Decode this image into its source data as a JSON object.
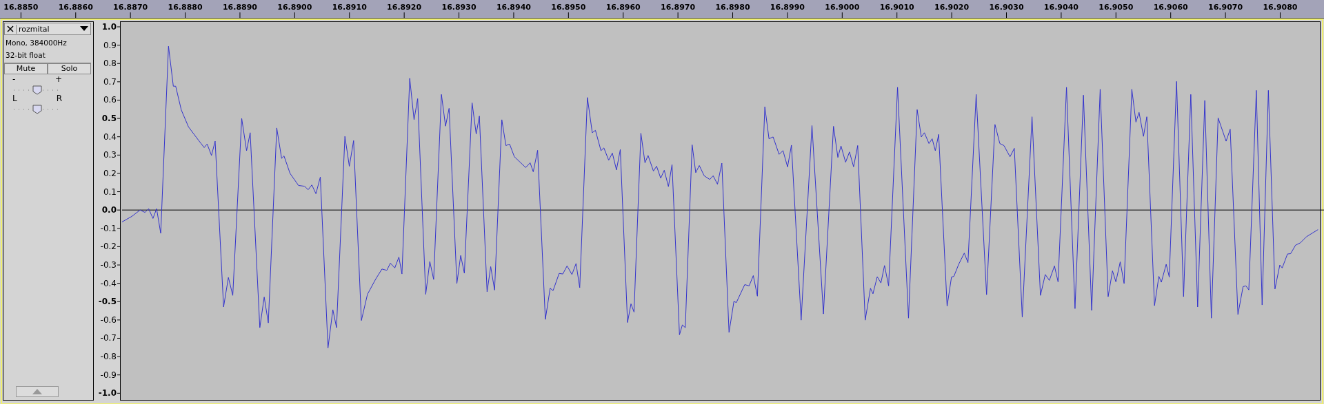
{
  "chart_data": {
    "type": "line",
    "color": "#3333cc",
    "xlim": [
      16.88463,
      16.9088
    ],
    "ylim": [
      -1.04,
      1.03
    ],
    "xticks": [
      {
        "value": 16.885,
        "label": "16.8850"
      },
      {
        "value": 16.886,
        "label": "16.8860"
      },
      {
        "value": 16.887,
        "label": "16.8870"
      },
      {
        "value": 16.888,
        "label": "16.8880"
      },
      {
        "value": 16.889,
        "label": "16.8890"
      },
      {
        "value": 16.89,
        "label": "16.8900"
      },
      {
        "value": 16.891,
        "label": "16.8910"
      },
      {
        "value": 16.892,
        "label": "16.8920"
      },
      {
        "value": 16.893,
        "label": "16.8930"
      },
      {
        "value": 16.894,
        "label": "16.8940"
      },
      {
        "value": 16.895,
        "label": "16.8950"
      },
      {
        "value": 16.896,
        "label": "16.8960"
      },
      {
        "value": 16.897,
        "label": "16.8970"
      },
      {
        "value": 16.898,
        "label": "16.8980"
      },
      {
        "value": 16.899,
        "label": "16.8990"
      },
      {
        "value": 16.9,
        "label": "16.9000"
      },
      {
        "value": 16.901,
        "label": "16.9010"
      },
      {
        "value": 16.902,
        "label": "16.9020"
      },
      {
        "value": 16.903,
        "label": "16.9030"
      },
      {
        "value": 16.904,
        "label": "16.9040"
      },
      {
        "value": 16.905,
        "label": "16.9050"
      },
      {
        "value": 16.906,
        "label": "16.9060"
      },
      {
        "value": 16.907,
        "label": "16.9070"
      },
      {
        "value": 16.908,
        "label": "16.9080"
      }
    ],
    "yticks": [
      {
        "value": 1,
        "label": "1.0"
      },
      0.9,
      0.8,
      0.7,
      0.6,
      0.5,
      0.4,
      0.3,
      0.2,
      0.1,
      {
        "value": 0,
        "label": "0.0"
      },
      -0.1,
      -0.2,
      -0.3,
      -0.4,
      -0.5,
      -0.6,
      -0.7,
      -0.8,
      -0.9,
      {
        "value": -1,
        "label": "-1.0"
      }
    ],
    "ref_lines": [
      {
        "axis": "y",
        "value": 0,
        "color": "#000000"
      }
    ],
    "annotations": [
      "rozmital",
      "Mono, 384000Hz",
      "32-bit float",
      "Mute",
      "Solo",
      "-",
      "+",
      "L",
      "R"
    ],
    "x": [
      16.886846,
      16.887023,
      16.887177,
      16.887266,
      16.887333,
      16.887411,
      16.887478,
      16.887553,
      16.887695,
      16.887783,
      16.887826,
      16.887929,
      16.88806,
      16.888238,
      16.888347,
      16.888401,
      16.88848,
      16.888547,
      16.888701,
      16.888789,
      16.888869,
      16.889032,
      16.889121,
      16.889187,
      16.889363,
      16.889443,
      16.889518,
      16.889672,
      16.889761,
      16.889805,
      16.889915,
      16.89007,
      16.89018,
      16.890246,
      16.890313,
      16.890388,
      16.890468,
      16.890608,
      16.890697,
      16.890764,
      16.890917,
      16.890998,
      16.891076,
      16.891218,
      16.891329,
      16.891483,
      16.891594,
      16.891682,
      16.891748,
      16.891828,
      16.891903,
      16.891959,
      16.892101,
      16.89218,
      16.892246,
      16.892393,
      16.892468,
      16.892538,
      16.89268,
      16.892755,
      16.89282,
      16.892962,
      16.893032,
      16.893099,
      16.89324,
      16.893315,
      16.893373,
      16.893514,
      16.89358,
      16.893651,
      16.893783,
      16.893858,
      16.893925,
      16.894012,
      16.89422,
      16.8943,
      16.894357,
      16.894437,
      16.894578,
      16.894666,
      16.894719,
      16.89483,
      16.894897,
      16.894975,
      16.895064,
      16.895139,
      16.895206,
      16.895346,
      16.895435,
      16.895493,
      16.895594,
      16.895647,
      16.895735,
      16.895802,
      16.895877,
      16.895947,
      16.896079,
      16.896142,
      16.896198,
      16.896323,
      16.896398,
      16.896454,
      16.896552,
      16.89661,
      16.896685,
      16.89675,
      16.896826,
      16.896892,
      16.897028,
      16.897081,
      16.897134,
      16.897259,
      16.897325,
      16.89739,
      16.897479,
      16.897581,
      16.897643,
      16.897722,
      16.897802,
      16.897933,
      16.898022,
      16.898067,
      16.89822,
      16.8983,
      16.898376,
      16.898451,
      16.898587,
      16.898663,
      16.898738,
      16.898847,
      16.898919,
      16.899002,
      16.899073,
      16.89925,
      16.899448,
      16.899657,
      16.899841,
      16.899921,
      16.899978,
      16.900062,
      16.900133,
      16.900208,
      16.900283,
      16.90042,
      16.900517,
      16.900562,
      16.90064,
      16.900707,
      16.900773,
      16.900848,
      16.901011,
      16.901211,
      16.901369,
      16.901445,
      16.901501,
      16.901585,
      16.901643,
      16.901701,
      16.901762,
      16.901916,
      16.901996,
      16.90204,
      16.902128,
      16.90223,
      16.902297,
      16.902447,
      16.902637,
      16.90279,
      16.902879,
      16.902954,
      16.903065,
      16.903144,
      16.903289,
      16.903467,
      16.903621,
      16.903709,
      16.903784,
      16.903877,
      16.903943,
      16.904097,
      16.904252,
      16.904406,
      16.904557,
      16.904712,
      16.904857,
      16.904937,
      16.904999,
      16.905078,
      16.905149,
      16.90529,
      16.905365,
      16.905422,
      16.905503,
      16.905564,
      16.905704,
      16.905784,
      16.905829,
      16.905918,
      16.905974,
      16.906107,
      16.906235,
      16.906367,
      16.906492,
      16.906623,
      16.906743,
      16.906866,
      16.907012,
      16.907087,
      16.907228,
      16.907322,
      16.907374,
      16.907427,
      16.907564,
      16.90767,
      16.907784,
      16.907904,
      16.907993,
      16.908037,
      16.908133,
      16.908191,
      16.90828,
      16.908368,
      16.908478,
      16.90869
    ],
    "values": [
      -0.065,
      -0.035,
      0.0,
      -0.013,
      0.007,
      -0.046,
      0.007,
      -0.127,
      0.894,
      0.676,
      0.676,
      0.546,
      0.454,
      0.383,
      0.341,
      0.36,
      0.298,
      0.376,
      -0.529,
      -0.368,
      -0.466,
      0.5,
      0.324,
      0.422,
      -0.642,
      -0.475,
      -0.616,
      0.448,
      0.282,
      0.295,
      0.2,
      0.134,
      0.13,
      0.111,
      0.137,
      0.089,
      0.18,
      -0.753,
      -0.544,
      -0.642,
      0.402,
      0.239,
      0.379,
      -0.603,
      -0.46,
      -0.375,
      -0.322,
      -0.329,
      -0.29,
      -0.316,
      -0.257,
      -0.349,
      0.719,
      0.493,
      0.608,
      -0.46,
      -0.281,
      -0.379,
      0.631,
      0.458,
      0.555,
      -0.401,
      -0.248,
      -0.345,
      0.585,
      0.415,
      0.513,
      -0.446,
      -0.309,
      -0.437,
      0.493,
      0.352,
      0.36,
      0.291,
      0.232,
      0.258,
      0.209,
      0.326,
      -0.597,
      -0.427,
      -0.44,
      -0.346,
      -0.349,
      -0.305,
      -0.352,
      -0.292,
      -0.424,
      0.614,
      0.422,
      0.435,
      0.324,
      0.339,
      0.272,
      0.311,
      0.219,
      0.33,
      -0.614,
      -0.512,
      -0.557,
      0.419,
      0.258,
      0.298,
      0.213,
      0.239,
      0.174,
      0.217,
      0.128,
      0.248,
      -0.681,
      -0.627,
      -0.642,
      0.356,
      0.204,
      0.243,
      0.187,
      0.167,
      0.187,
      0.141,
      0.256,
      -0.668,
      -0.499,
      -0.505,
      -0.407,
      -0.414,
      -0.358,
      -0.47,
      0.563,
      0.389,
      0.399,
      0.304,
      0.324,
      0.235,
      0.354,
      -0.601,
      0.461,
      -0.567,
      0.457,
      0.287,
      0.35,
      0.261,
      0.317,
      0.236,
      0.352,
      -0.601,
      -0.427,
      -0.457,
      -0.364,
      -0.398,
      -0.303,
      -0.414,
      0.67,
      -0.59,
      0.548,
      0.399,
      0.422,
      0.363,
      0.389,
      0.324,
      0.413,
      -0.525,
      -0.366,
      -0.362,
      -0.296,
      -0.235,
      -0.287,
      0.631,
      -0.462,
      0.467,
      0.363,
      0.352,
      0.291,
      0.337,
      -0.584,
      0.509,
      -0.466,
      -0.352,
      -0.384,
      -0.305,
      -0.392,
      0.67,
      -0.538,
      0.627,
      -0.548,
      0.659,
      -0.473,
      -0.332,
      -0.392,
      -0.283,
      -0.401,
      0.659,
      0.48,
      0.533,
      0.402,
      0.509,
      -0.522,
      -0.362,
      -0.394,
      -0.296,
      -0.366,
      0.702,
      -0.473,
      0.631,
      -0.529,
      0.598,
      -0.59,
      0.503,
      0.376,
      0.441,
      -0.57,
      -0.418,
      -0.414,
      -0.436,
      0.653,
      -0.518,
      0.653,
      -0.431,
      -0.3,
      -0.316,
      -0.24,
      -0.238,
      -0.192,
      -0.179,
      -0.146,
      -0.107
    ]
  }
}
